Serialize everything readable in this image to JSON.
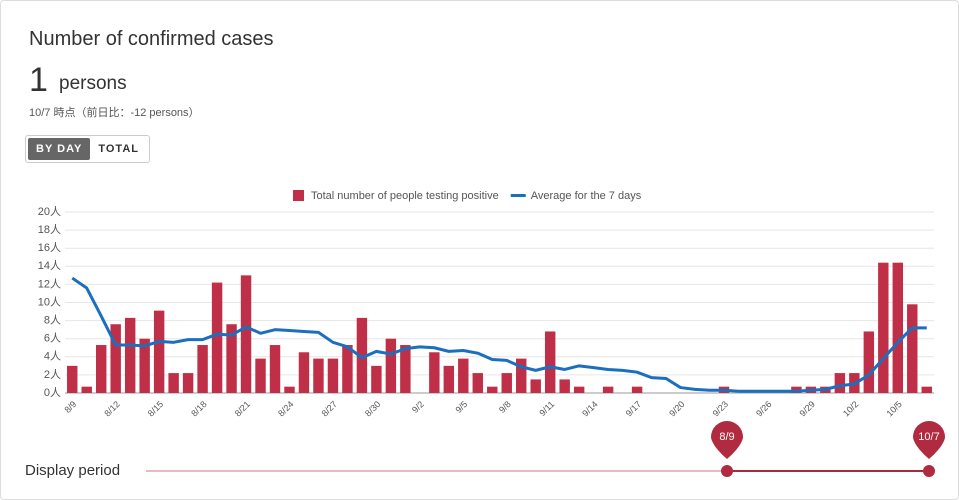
{
  "header": {
    "title": "Number of confirmed cases",
    "value": "1",
    "unit": "persons",
    "note": "10/7 時点（前日比：-12 persons）"
  },
  "toggle": {
    "options": [
      "BY DAY",
      "TOTAL"
    ],
    "selected": 0
  },
  "chart_data": {
    "type": "combo",
    "categories": [
      "8/9",
      null,
      null,
      "8/12",
      null,
      null,
      "8/15",
      null,
      null,
      "8/18",
      null,
      null,
      "8/21",
      null,
      null,
      "8/24",
      null,
      null,
      "8/27",
      null,
      null,
      "8/30",
      null,
      null,
      "9/2",
      null,
      null,
      "9/5",
      null,
      null,
      "9/8",
      null,
      null,
      "9/11",
      null,
      null,
      "9/14",
      null,
      null,
      "9/17",
      null,
      null,
      "9/20",
      null,
      null,
      "9/23",
      null,
      null,
      "9/26",
      null,
      null,
      "9/29",
      null,
      null,
      "10/2",
      null,
      null,
      "10/5",
      null,
      null
    ],
    "series": [
      {
        "name": "Total number of people testing positive",
        "type": "bar",
        "color": "#bf3048",
        "values": [
          3.0,
          0.7,
          5.3,
          7.6,
          8.3,
          6.0,
          9.1,
          2.2,
          2.2,
          5.3,
          12.2,
          7.6,
          13.0,
          3.8,
          5.3,
          0.7,
          4.5,
          3.8,
          3.8,
          5.3,
          8.3,
          3.0,
          6.0,
          5.3,
          0,
          4.5,
          3.0,
          3.8,
          2.2,
          0.7,
          2.2,
          3.8,
          1.5,
          6.8,
          1.5,
          0.7,
          0,
          0.7,
          0,
          0.7,
          0,
          0,
          0,
          0,
          0,
          0.7,
          0,
          0,
          0,
          0,
          0.7,
          0.7,
          0.7,
          2.2,
          2.2,
          6.8,
          14.4,
          14.4,
          9.8,
          0.7
        ]
      },
      {
        "name": "Average for the 7 days",
        "type": "line",
        "color": "#1b6fbf",
        "values": [
          12.7,
          11.6,
          8.5,
          5.3,
          5.3,
          5.2,
          5.7,
          5.6,
          5.9,
          5.9,
          6.5,
          6.4,
          7.3,
          6.6,
          7.0,
          6.9,
          6.8,
          6.7,
          5.6,
          5.1,
          3.9,
          4.6,
          4.3,
          4.9,
          5.1,
          5.0,
          4.6,
          4.7,
          4.4,
          3.7,
          3.6,
          2.9,
          2.5,
          2.9,
          2.6,
          3.0,
          2.8,
          2.6,
          2.5,
          2.3,
          1.7,
          1.6,
          0.6,
          0.4,
          0.3,
          0.3,
          0.2,
          0.2,
          0.2,
          0.2,
          0.2,
          0.3,
          0.4,
          0.8,
          1.0,
          2.0,
          3.8,
          5.6,
          7.2,
          7.2
        ]
      }
    ],
    "ylim": [
      0,
      20
    ],
    "yticks": [
      {
        "value": 0,
        "label": "0人"
      },
      {
        "value": 2,
        "label": "2人"
      },
      {
        "value": 4,
        "label": "4人"
      },
      {
        "value": 6,
        "label": "6人"
      },
      {
        "value": 8,
        "label": "8人"
      },
      {
        "value": 10,
        "label": "10人"
      },
      {
        "value": 12,
        "label": "12人"
      },
      {
        "value": 14,
        "label": "14人"
      },
      {
        "value": 16,
        "label": "16人"
      },
      {
        "value": 18,
        "label": "18人"
      },
      {
        "value": 20,
        "label": "20人"
      }
    ],
    "grid": true
  },
  "slider": {
    "label": "Display period",
    "start": "8/9",
    "end": "10/7"
  }
}
